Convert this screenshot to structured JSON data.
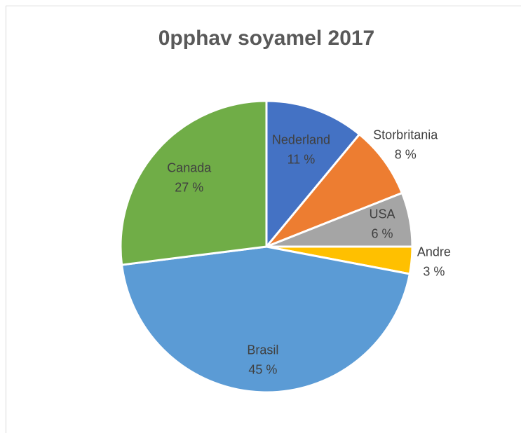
{
  "chart_data": {
    "type": "pie",
    "title": "0pphav soyamel 2017",
    "categories": [
      "Nederland",
      "Storbritania",
      "USA",
      "Andre",
      "Brasil",
      "Canada"
    ],
    "values": [
      11,
      8,
      6,
      3,
      45,
      27
    ],
    "value_labels": [
      "11 %",
      "8 %",
      "6 %",
      "3 %",
      "45 %",
      "27 %"
    ],
    "colors": [
      "#4472c4",
      "#ed7d31",
      "#a5a5a5",
      "#ffc000",
      "#5b9bd5",
      "#70ad47"
    ]
  }
}
